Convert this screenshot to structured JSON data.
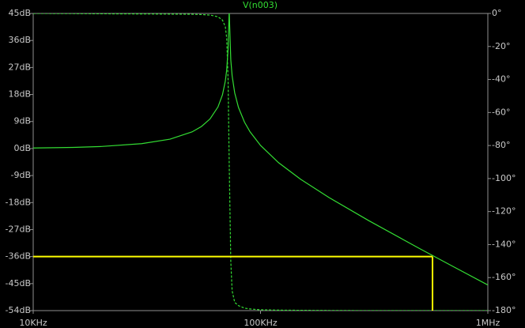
{
  "chart_data": {
    "type": "line",
    "title": "V(n003)",
    "xscale": "log",
    "x": [
      10000,
      15000,
      20000,
      30000,
      40000,
      50000,
      55000,
      60000,
      65000,
      68000,
      70000,
      71000,
      72000,
      72800,
      74000,
      75000,
      77000,
      80000,
      85000,
      90000,
      100000,
      120000,
      150000,
      200000,
      300000,
      500000,
      700000,
      1000000
    ],
    "series": [
      {
        "name": "magnitude",
        "color": "#33dd33",
        "dash": false,
        "values": [
          0.17,
          0.38,
          0.68,
          1.62,
          3.12,
          5.54,
          7.35,
          9.88,
          13.86,
          17.89,
          22.44,
          26.23,
          33.2,
          46,
          29.55,
          24.25,
          18.51,
          13.66,
          8.79,
          5.54,
          1.04,
          -4.7,
          -10.22,
          -16.32,
          -24.07,
          -33.29,
          -39.22,
          -45.47
        ]
      },
      {
        "name": "phase",
        "color": "#33dd33",
        "dash": true,
        "axis": "y2",
        "values": [
          0,
          -0.1,
          -0.2,
          -0.3,
          -0.4,
          -0.5,
          -0.7,
          -1,
          -2,
          -4,
          -8,
          -15,
          -40,
          -90,
          -150,
          -168,
          -175,
          -177,
          -178.5,
          -179,
          -179.5,
          -179.7,
          -179.8,
          -179.9,
          -180,
          -180,
          -180,
          -180
        ]
      }
    ],
    "xlim": [
      10000,
      1000000
    ],
    "xticks": [
      {
        "value": 10000,
        "label": "10KHz"
      },
      {
        "value": 100000,
        "label": "100KHz"
      },
      {
        "value": 1000000,
        "label": "1MHz"
      }
    ],
    "ylim": [
      -54,
      45
    ],
    "yticks": [
      {
        "value": 45,
        "label": "45dB"
      },
      {
        "value": 36,
        "label": "36dB"
      },
      {
        "value": 27,
        "label": "27dB"
      },
      {
        "value": 18,
        "label": "18dB"
      },
      {
        "value": 9,
        "label": "9dB"
      },
      {
        "value": 0,
        "label": "0dB"
      },
      {
        "value": -9,
        "label": "-9dB"
      },
      {
        "value": -18,
        "label": "-18dB"
      },
      {
        "value": -27,
        "label": "-27dB"
      },
      {
        "value": -36,
        "label": "-36dB"
      },
      {
        "value": -45,
        "label": "-45dB"
      },
      {
        "value": -54,
        "label": "-54dB"
      }
    ],
    "y2lim": [
      -180,
      0
    ],
    "y2ticks": [
      {
        "value": 0,
        "label": "0°"
      },
      {
        "value": -20,
        "label": "-20°"
      },
      {
        "value": -40,
        "label": "-40°"
      },
      {
        "value": -60,
        "label": "-60°"
      },
      {
        "value": -80,
        "label": "-80°"
      },
      {
        "value": -100,
        "label": "-100°"
      },
      {
        "value": -120,
        "label": "-120°"
      },
      {
        "value": -140,
        "label": "-140°"
      },
      {
        "value": -160,
        "label": "-160°"
      },
      {
        "value": -180,
        "label": "-180°"
      }
    ],
    "cursor": {
      "x": 571000,
      "y": -36,
      "color": "#ffff00"
    }
  }
}
